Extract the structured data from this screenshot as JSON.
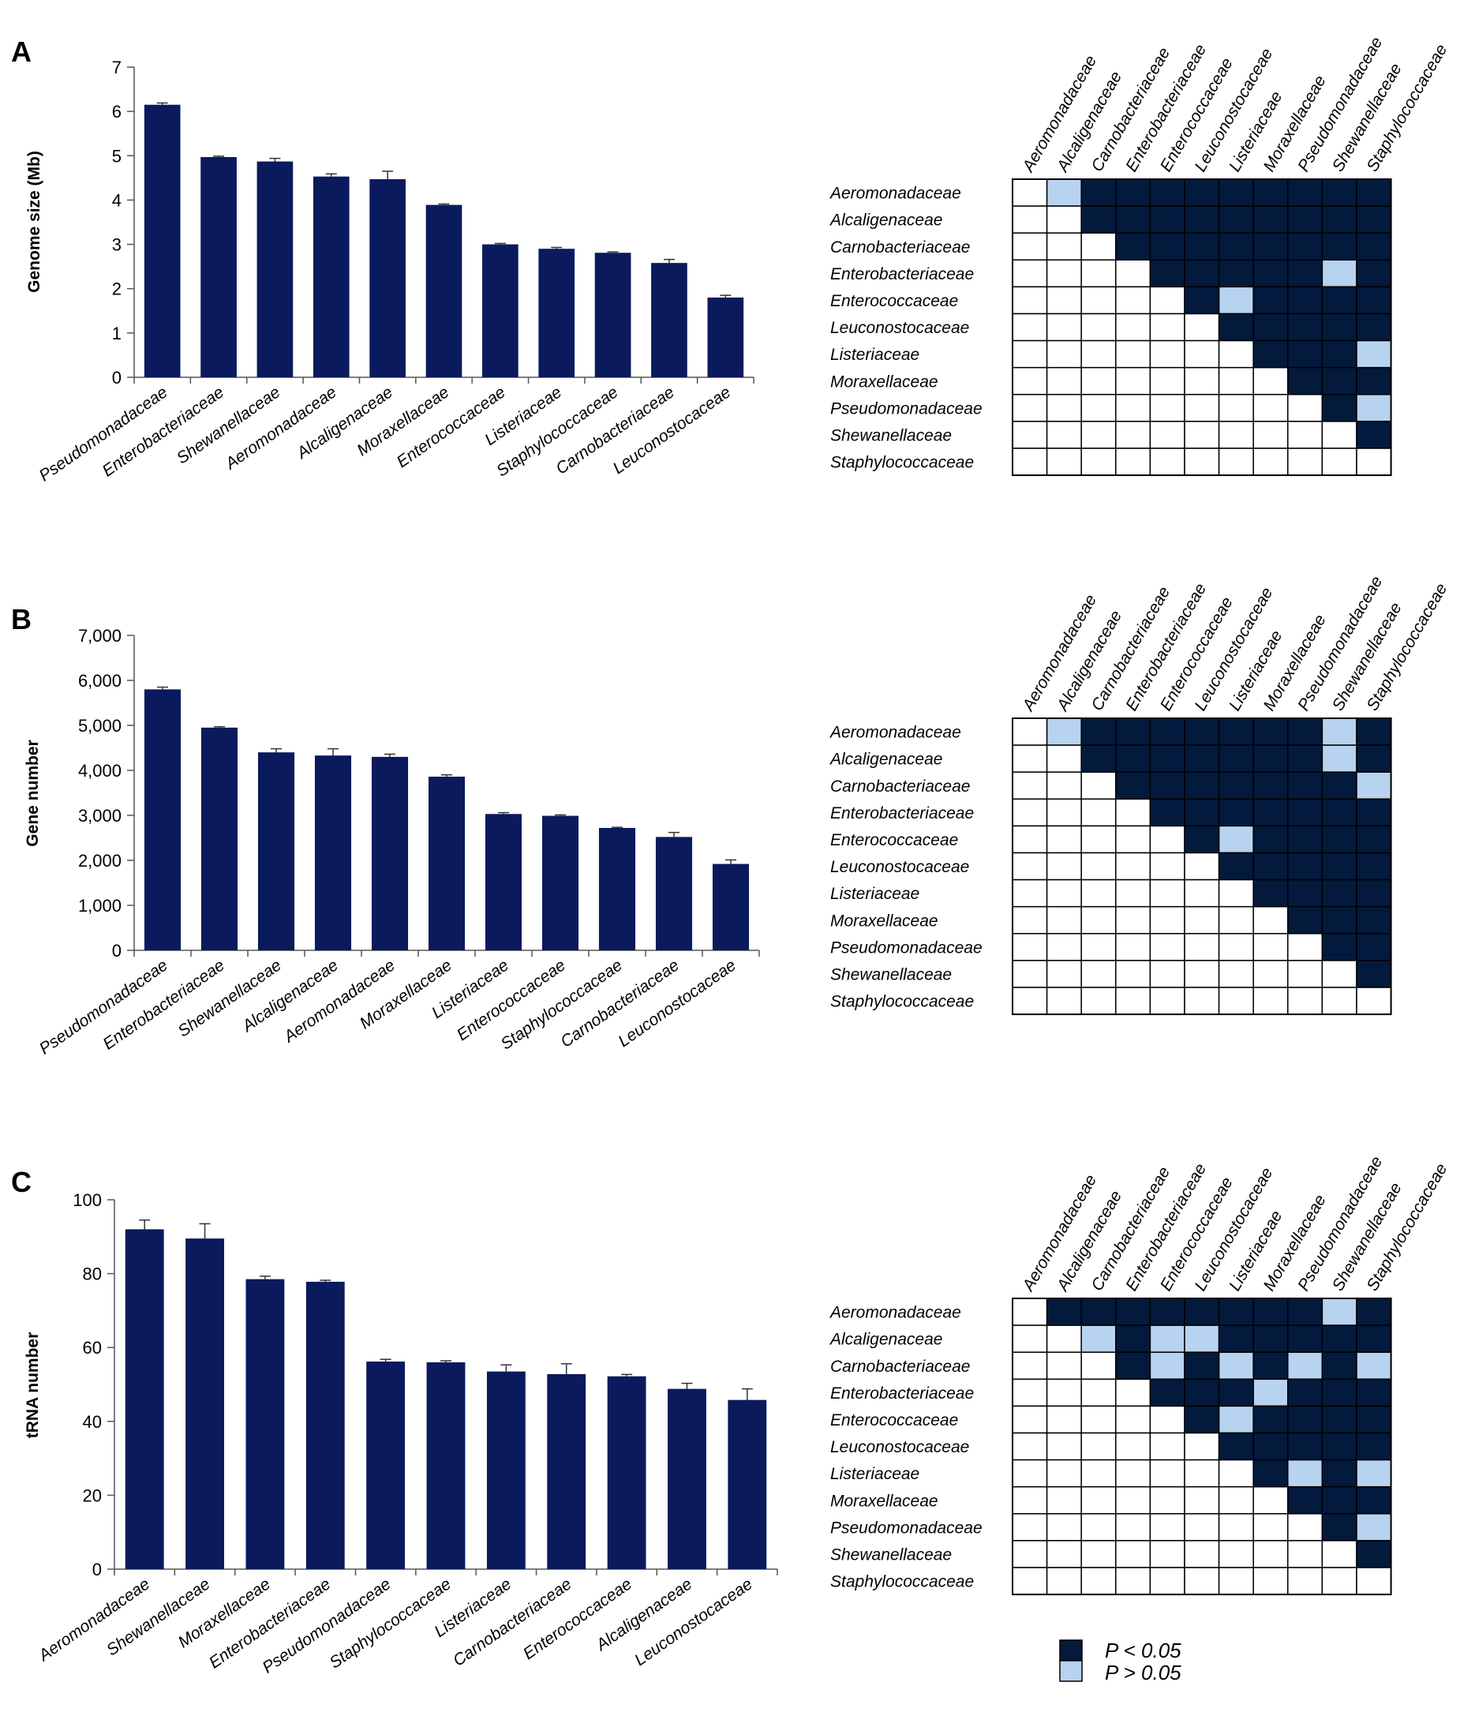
{
  "colors": {
    "bar": "#0b1a5c",
    "sig": "#031a3d",
    "nonsig": "#b8d3ef",
    "empty": "#ffffff",
    "grid_line": "#000000"
  },
  "legend": {
    "sig_label": "P < 0.05",
    "nonsig_label": "P > 0.05"
  },
  "chart_data": [
    {
      "type": "bar",
      "panel": "A",
      "title": "",
      "xlabel": "",
      "ylabel": "Genome size (Mb)",
      "ylim": [
        0,
        7
      ],
      "yticks": [
        0,
        1,
        2,
        3,
        4,
        5,
        6,
        7
      ],
      "ytick_labels": [
        "0",
        "1",
        "2",
        "3",
        "4",
        "5",
        "6",
        "7"
      ],
      "categories": [
        "Pseudomonadaceae",
        "Enterobacteriaceae",
        "Shewanellaceae",
        "Aeromonadaceae",
        "Alcaligenaceae",
        "Moraxellaceae",
        "Enterococcaceae",
        "Listeriaceae",
        "Staphylococcaceae",
        "Carnobacteriaceae",
        "Leuconostocaceae"
      ],
      "values": [
        6.15,
        4.97,
        4.87,
        4.53,
        4.47,
        3.89,
        3.0,
        2.9,
        2.81,
        2.58,
        1.8
      ],
      "errors": [
        0.04,
        0.02,
        0.07,
        0.06,
        0.18,
        0.02,
        0.02,
        0.03,
        0.02,
        0.08,
        0.05
      ]
    },
    {
      "type": "bar",
      "panel": "B",
      "title": "",
      "xlabel": "",
      "ylabel": "Gene number",
      "ylim": [
        0,
        7000
      ],
      "yticks": [
        0,
        1000,
        2000,
        3000,
        4000,
        5000,
        6000,
        7000
      ],
      "ytick_labels": [
        "0",
        "1,000",
        "2,000",
        "3,000",
        "4,000",
        "5,000",
        "6,000",
        "7,000"
      ],
      "categories": [
        "Pseudomonadaceae",
        "Enterobacteriaceae",
        "Shewanellaceae",
        "Alcaligenaceae",
        "Aeromonadaceae",
        "Moraxellaceae",
        "Listeriaceae",
        "Enterococcaceae",
        "Staphylococcaceae",
        "Carnobacteriaceae",
        "Leuconostocaceae"
      ],
      "values": [
        5800,
        4950,
        4400,
        4330,
        4300,
        3860,
        3030,
        2990,
        2720,
        2520,
        1920
      ],
      "errors": [
        50,
        20,
        80,
        150,
        60,
        40,
        30,
        20,
        15,
        100,
        90
      ]
    },
    {
      "type": "bar",
      "panel": "C",
      "title": "",
      "xlabel": "",
      "ylabel": "tRNA number",
      "ylim": [
        0,
        100
      ],
      "yticks": [
        0,
        20,
        40,
        60,
        80,
        100
      ],
      "ytick_labels": [
        "0",
        "20",
        "40",
        "60",
        "80",
        "100"
      ],
      "categories": [
        "Aeromonadaceae",
        "Shewanellaceae",
        "Moraxellaceae",
        "Enterobacteriaceae",
        "Pseudomonadaceae",
        "Staphylococcaceae",
        "Listeriaceae",
        "Carnobacteriaceae",
        "Enterococcaceae",
        "Alcaligenaceae",
        "Leuconostocaceae"
      ],
      "values": [
        92,
        89.5,
        78.5,
        77.8,
        56.2,
        56.0,
        53.5,
        52.8,
        52.2,
        48.8,
        45.8
      ],
      "errors": [
        2.5,
        4.0,
        0.8,
        0.4,
        0.6,
        0.4,
        1.8,
        2.8,
        0.5,
        1.5,
        3.0
      ]
    },
    {
      "type": "heatmap",
      "panel": "A-matrix",
      "labels": [
        "Aeromonadaceae",
        "Alcaligenaceae",
        "Carnobacteriaceae",
        "Enterobacteriaceae",
        "Enterococcaceae",
        "Leuconostocaceae",
        "Listeriaceae",
        "Moraxellaceae",
        "Pseudomonadaceae",
        "Shewanellaceae",
        "Staphylococcaceae"
      ],
      "cells": [
        [
          0,
          2,
          1,
          1,
          1,
          1,
          1,
          1,
          1,
          1,
          1
        ],
        [
          0,
          0,
          1,
          1,
          1,
          1,
          1,
          1,
          1,
          1,
          1
        ],
        [
          0,
          0,
          0,
          1,
          1,
          1,
          1,
          1,
          1,
          1,
          1
        ],
        [
          0,
          0,
          0,
          0,
          1,
          1,
          1,
          1,
          1,
          2,
          1
        ],
        [
          0,
          0,
          0,
          0,
          0,
          1,
          2,
          1,
          1,
          1,
          1
        ],
        [
          0,
          0,
          0,
          0,
          0,
          0,
          1,
          1,
          1,
          1,
          1
        ],
        [
          0,
          0,
          0,
          0,
          0,
          0,
          0,
          1,
          1,
          1,
          2
        ],
        [
          0,
          0,
          0,
          0,
          0,
          0,
          0,
          0,
          1,
          1,
          1
        ],
        [
          0,
          0,
          0,
          0,
          0,
          0,
          0,
          0,
          0,
          1,
          2
        ],
        [
          0,
          0,
          0,
          0,
          0,
          0,
          0,
          0,
          0,
          0,
          1
        ],
        [
          0,
          0,
          0,
          0,
          0,
          0,
          0,
          0,
          0,
          0,
          0
        ]
      ]
    },
    {
      "type": "heatmap",
      "panel": "B-matrix",
      "labels": [
        "Aeromonadaceae",
        "Alcaligenaceae",
        "Carnobacteriaceae",
        "Enterobacteriaceae",
        "Enterococcaceae",
        "Leuconostocaceae",
        "Listeriaceae",
        "Moraxellaceae",
        "Pseudomonadaceae",
        "Shewanellaceae",
        "Staphylococcaceae"
      ],
      "cells": [
        [
          0,
          2,
          1,
          1,
          1,
          1,
          1,
          1,
          1,
          2,
          1
        ],
        [
          0,
          0,
          1,
          1,
          1,
          1,
          1,
          1,
          1,
          2,
          1
        ],
        [
          0,
          0,
          0,
          1,
          1,
          1,
          1,
          1,
          1,
          1,
          2
        ],
        [
          0,
          0,
          0,
          0,
          1,
          1,
          1,
          1,
          1,
          1,
          1
        ],
        [
          0,
          0,
          0,
          0,
          0,
          1,
          2,
          1,
          1,
          1,
          1
        ],
        [
          0,
          0,
          0,
          0,
          0,
          0,
          1,
          1,
          1,
          1,
          1
        ],
        [
          0,
          0,
          0,
          0,
          0,
          0,
          0,
          1,
          1,
          1,
          1
        ],
        [
          0,
          0,
          0,
          0,
          0,
          0,
          0,
          0,
          1,
          1,
          1
        ],
        [
          0,
          0,
          0,
          0,
          0,
          0,
          0,
          0,
          0,
          1,
          1
        ],
        [
          0,
          0,
          0,
          0,
          0,
          0,
          0,
          0,
          0,
          0,
          1
        ],
        [
          0,
          0,
          0,
          0,
          0,
          0,
          0,
          0,
          0,
          0,
          0
        ]
      ]
    },
    {
      "type": "heatmap",
      "panel": "C-matrix",
      "labels": [
        "Aeromonadaceae",
        "Alcaligenaceae",
        "Carnobacteriaceae",
        "Enterobacteriaceae",
        "Enterococcaceae",
        "Leuconostocaceae",
        "Listeriaceae",
        "Moraxellaceae",
        "Pseudomonadaceae",
        "Shewanellaceae",
        "Staphylococcaceae"
      ],
      "cells": [
        [
          0,
          1,
          1,
          1,
          1,
          1,
          1,
          1,
          1,
          2,
          1
        ],
        [
          0,
          0,
          2,
          1,
          2,
          2,
          1,
          1,
          1,
          1,
          1
        ],
        [
          0,
          0,
          0,
          1,
          2,
          1,
          2,
          1,
          2,
          1,
          2
        ],
        [
          0,
          0,
          0,
          0,
          1,
          1,
          1,
          2,
          1,
          1,
          1
        ],
        [
          0,
          0,
          0,
          0,
          0,
          1,
          2,
          1,
          1,
          1,
          1
        ],
        [
          0,
          0,
          0,
          0,
          0,
          0,
          1,
          1,
          1,
          1,
          1
        ],
        [
          0,
          0,
          0,
          0,
          0,
          0,
          0,
          1,
          2,
          1,
          2
        ],
        [
          0,
          0,
          0,
          0,
          0,
          0,
          0,
          0,
          1,
          1,
          1
        ],
        [
          0,
          0,
          0,
          0,
          0,
          0,
          0,
          0,
          0,
          1,
          2
        ],
        [
          0,
          0,
          0,
          0,
          0,
          0,
          0,
          0,
          0,
          0,
          1
        ],
        [
          0,
          0,
          0,
          0,
          0,
          0,
          0,
          0,
          0,
          0,
          0
        ]
      ]
    }
  ]
}
